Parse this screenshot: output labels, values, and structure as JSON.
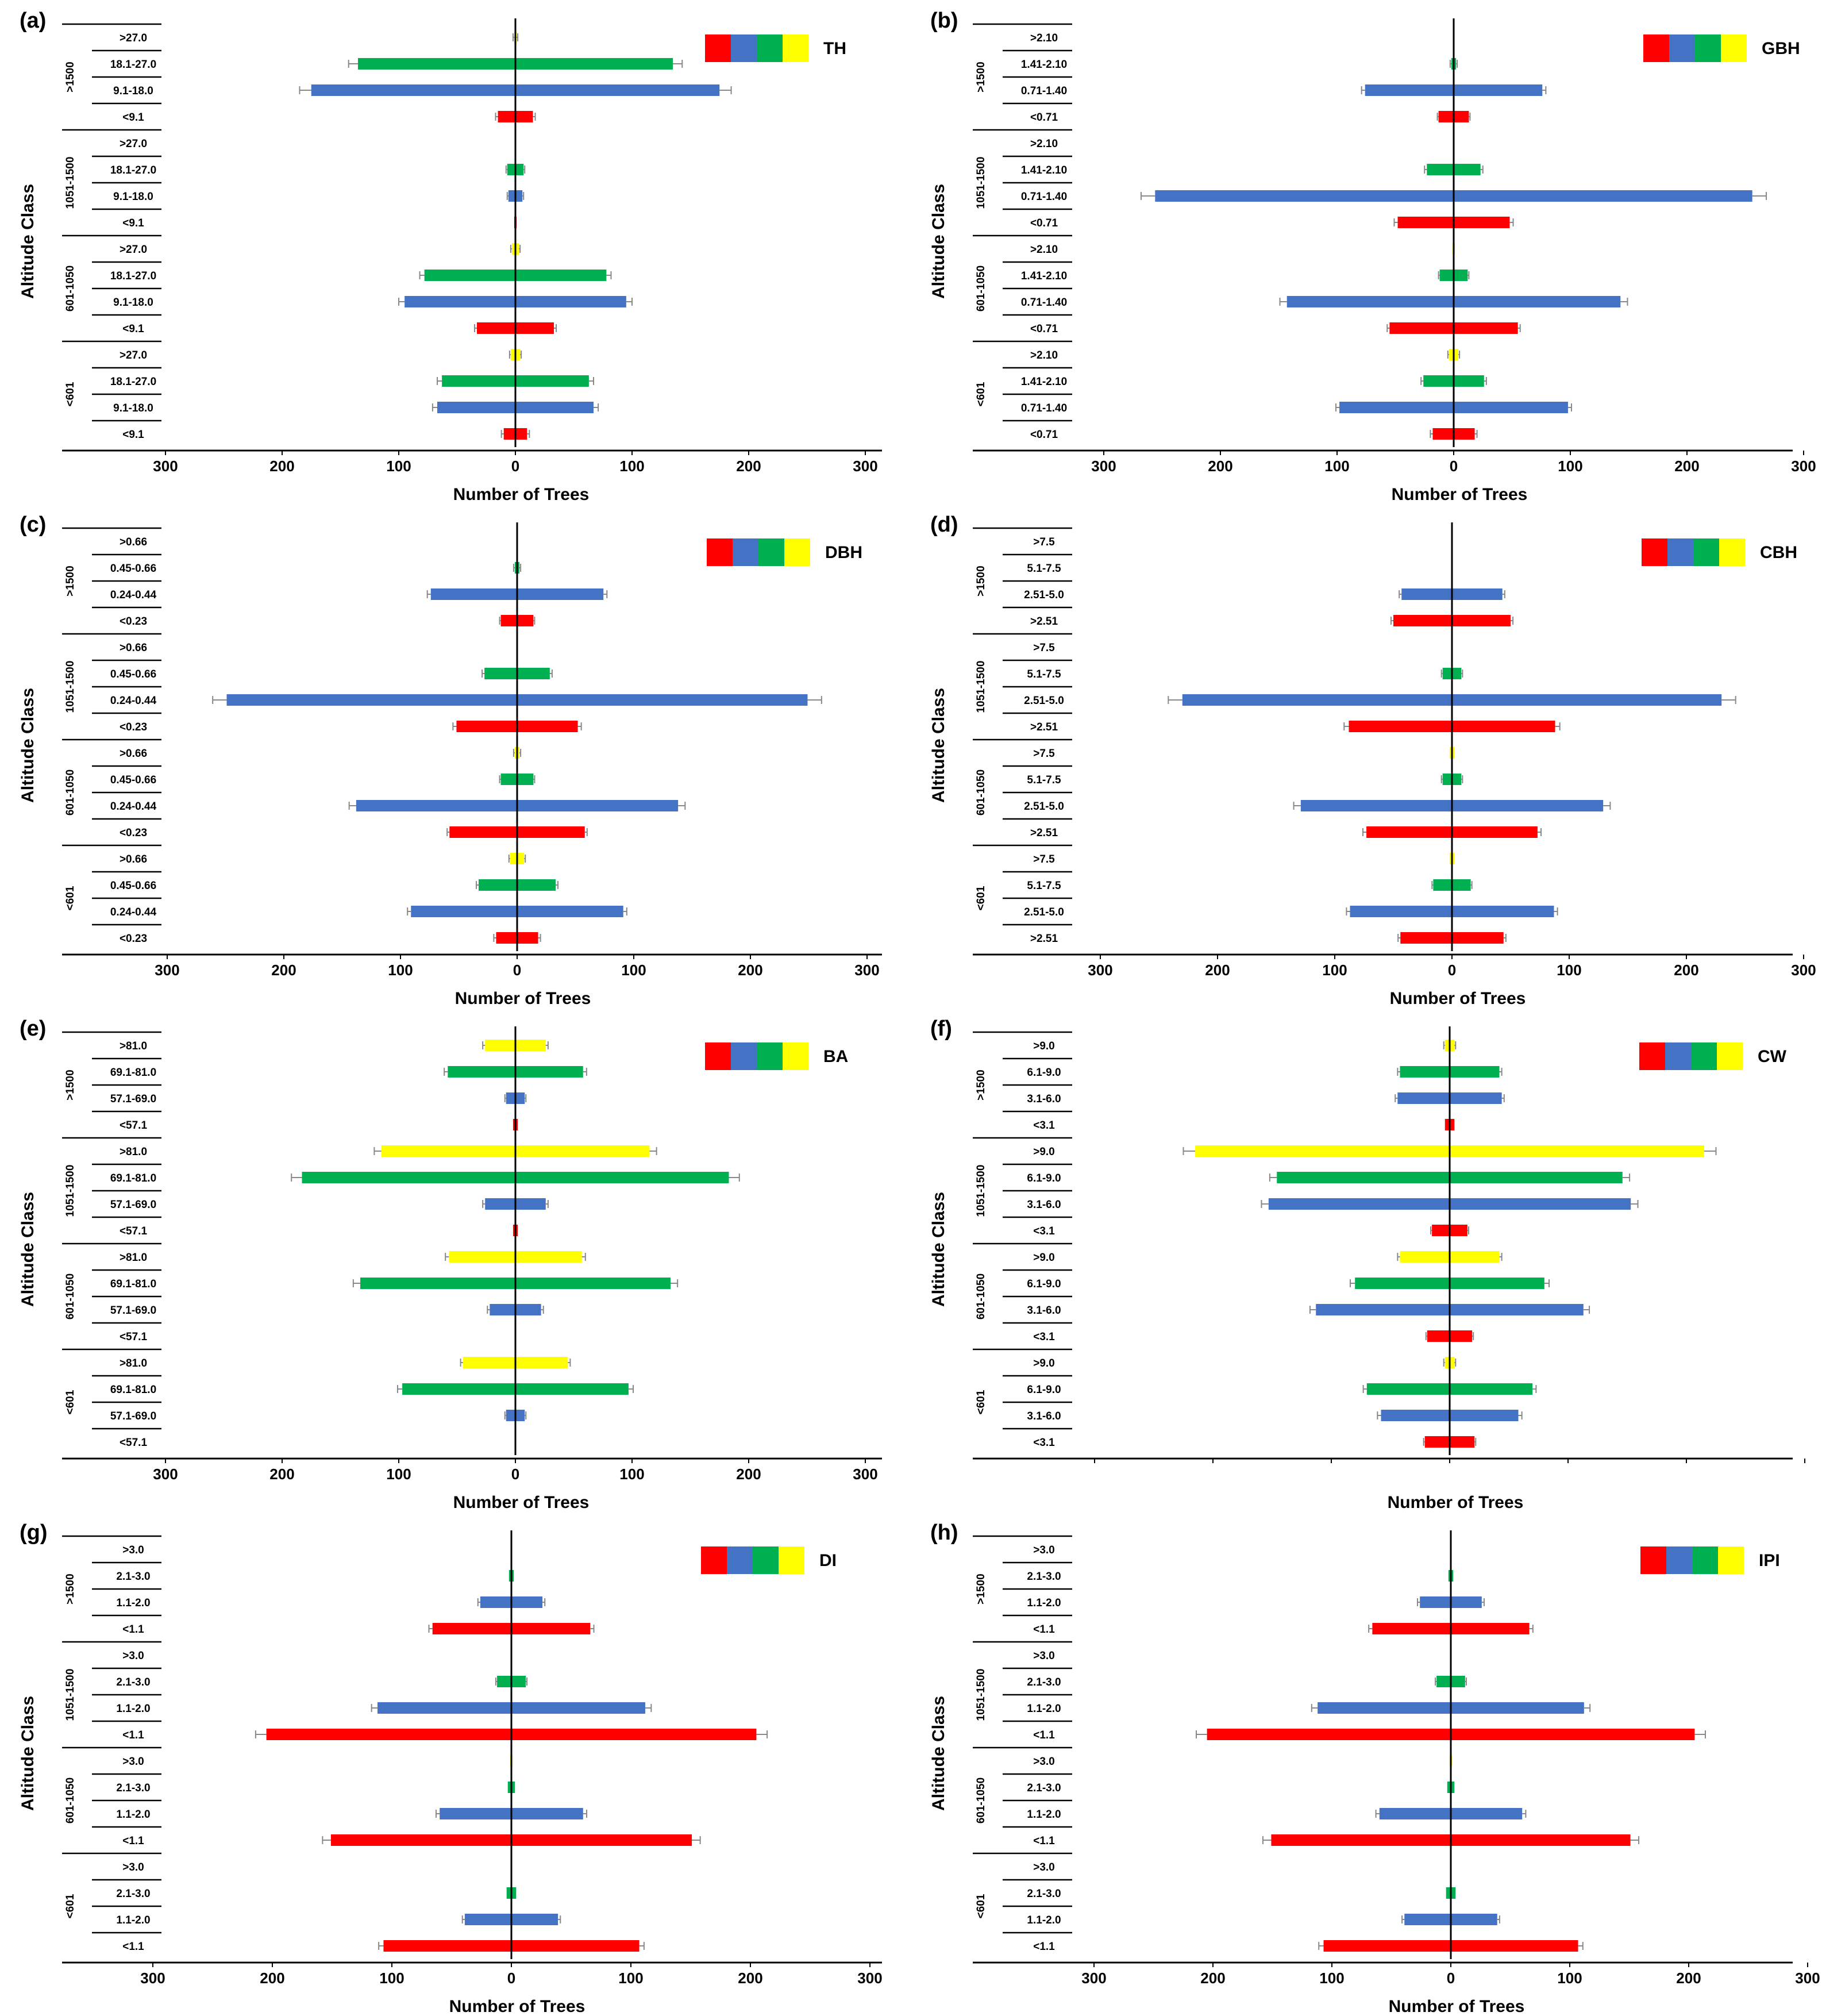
{
  "figure": {
    "y_axis_label": "Altitude Class",
    "x_axis_label": "Number of Trees",
    "altitude_classes": [
      ">1500",
      "1051-1500",
      "601-1050",
      "<601"
    ],
    "legend_colors": [
      "#ff0000",
      "#4472c4",
      "#00b050",
      "#ffff00"
    ]
  },
  "chart_data": [
    {
      "id": "a",
      "panel_label": "(a)",
      "title": "TH",
      "type": "bar",
      "xlabel": "Number of Trees",
      "ylabel": "Altitude Class",
      "xlim": [
        -300,
        300
      ],
      "x_ticks": [
        "300",
        "200",
        "100",
        "0",
        "100",
        "200",
        "300"
      ],
      "groups": [
        {
          "altitude": ">1500",
          "size_labels": [
            ">27.0",
            "18.1-27.0",
            "9.1-18.0",
            "<9.1"
          ],
          "values": [
            1,
            135,
            175,
            15
          ],
          "errors": [
            1,
            8,
            10,
            2
          ]
        },
        {
          "altitude": "1051-1500",
          "size_labels": [
            ">27.0",
            "18.1-27.0",
            "9.1-18.0",
            "<9.1"
          ],
          "values": [
            0,
            7,
            6,
            1
          ],
          "errors": [
            0,
            1,
            1,
            0
          ]
        },
        {
          "altitude": "601-1050",
          "size_labels": [
            ">27.0",
            "18.1-27.0",
            "9.1-18.0",
            "<9.1"
          ],
          "values": [
            3,
            78,
            95,
            33
          ],
          "errors": [
            1,
            4,
            5,
            2
          ]
        },
        {
          "altitude": "<601",
          "size_labels": [
            ">27.0",
            "18.1-27.0",
            "9.1-18.0",
            "<9.1"
          ],
          "values": [
            4,
            63,
            67,
            10
          ],
          "errors": [
            1,
            4,
            4,
            2
          ]
        }
      ]
    },
    {
      "id": "b",
      "panel_label": "(b)",
      "title": "GBH",
      "type": "bar",
      "xlabel": "Number of Trees",
      "ylabel": "Altitude Class",
      "xlim": [
        -300,
        300
      ],
      "x_ticks": [
        "300",
        "200",
        "100",
        "0",
        "100",
        "200",
        "300"
      ],
      "groups": [
        {
          "altitude": ">1500",
          "size_labels": [
            ">2.10",
            "1.41-2.10",
            "0.71-1.40",
            "<0.71"
          ],
          "values": [
            0,
            2,
            76,
            13
          ],
          "errors": [
            0,
            1,
            3,
            1
          ]
        },
        {
          "altitude": "1051-1500",
          "size_labels": [
            ">2.10",
            "1.41-2.10",
            "0.71-1.40",
            "<0.71"
          ],
          "values": [
            0,
            23,
            256,
            48
          ],
          "errors": [
            0,
            2,
            12,
            3
          ]
        },
        {
          "altitude": "601-1050",
          "size_labels": [
            ">2.10",
            "1.41-2.10",
            "0.71-1.40",
            "<0.71"
          ],
          "values": [
            1,
            12,
            143,
            55
          ],
          "errors": [
            0,
            1,
            6,
            2
          ]
        },
        {
          "altitude": "<601",
          "size_labels": [
            ">2.10",
            "1.41-2.10",
            "0.71-1.40",
            "<0.71"
          ],
          "values": [
            4,
            26,
            98,
            18
          ],
          "errors": [
            1,
            2,
            3,
            2
          ]
        }
      ]
    },
    {
      "id": "c",
      "panel_label": "(c)",
      "title": "DBH",
      "type": "bar",
      "xlabel": "Number of Trees",
      "ylabel": "Altitude Class",
      "xlim": [
        -300,
        300
      ],
      "x_ticks": [
        "300",
        "200",
        "100",
        "0",
        "100",
        "200",
        "300"
      ],
      "groups": [
        {
          "altitude": ">1500",
          "size_labels": [
            ">0.66",
            "0.45-0.66",
            "0.24-0.44",
            "<0.23"
          ],
          "values": [
            0,
            2,
            74,
            14
          ],
          "errors": [
            0,
            1,
            3,
            1
          ]
        },
        {
          "altitude": "1051-1500",
          "size_labels": [
            ">0.66",
            "0.45-0.66",
            "0.24-0.44",
            "<0.23"
          ],
          "values": [
            0,
            28,
            249,
            52
          ],
          "errors": [
            0,
            2,
            12,
            3
          ]
        },
        {
          "altitude": "601-1050",
          "size_labels": [
            ">0.66",
            "0.45-0.66",
            "0.24-0.44",
            "<0.23"
          ],
          "values": [
            2,
            14,
            138,
            58
          ],
          "errors": [
            1,
            1,
            6,
            2
          ]
        },
        {
          "altitude": "<601",
          "size_labels": [
            ">0.66",
            "0.45-0.66",
            "0.24-0.44",
            "<0.23"
          ],
          "values": [
            6,
            33,
            91,
            18
          ],
          "errors": [
            1,
            2,
            3,
            2
          ]
        }
      ]
    },
    {
      "id": "d",
      "panel_label": "(d)",
      "title": "CBH",
      "type": "bar",
      "xlabel": "Number of Trees",
      "ylabel": "Altitude Class",
      "xlim": [
        -300,
        300
      ],
      "x_ticks": [
        "300",
        "200",
        "100",
        "0",
        "100",
        "200",
        "300"
      ],
      "groups": [
        {
          "altitude": ">1500",
          "size_labels": [
            ">7.5",
            "5.1-7.5",
            "2.51-5.0",
            ">2.51"
          ],
          "values": [
            0,
            0,
            43,
            50
          ],
          "errors": [
            0,
            0,
            2,
            2
          ]
        },
        {
          "altitude": "1051-1500",
          "size_labels": [
            ">7.5",
            "5.1-7.5",
            "2.51-5.0",
            ">2.51"
          ],
          "values": [
            0,
            8,
            230,
            88
          ],
          "errors": [
            0,
            1,
            12,
            4
          ]
        },
        {
          "altitude": "601-1050",
          "size_labels": [
            ">7.5",
            "5.1-7.5",
            "2.51-5.0",
            ">2.51"
          ],
          "values": [
            2,
            8,
            129,
            73
          ],
          "errors": [
            0,
            1,
            6,
            3
          ]
        },
        {
          "altitude": "<601",
          "size_labels": [
            ">7.5",
            "5.1-7.5",
            "2.51-5.0",
            ">2.51"
          ],
          "values": [
            2,
            16,
            87,
            44
          ],
          "errors": [
            0,
            1,
            3,
            2
          ]
        }
      ]
    },
    {
      "id": "e",
      "panel_label": "(e)",
      "title": "BA",
      "type": "bar",
      "xlabel": "Number of Trees",
      "ylabel": "Altitude Class",
      "xlim": [
        -300,
        300
      ],
      "x_ticks": [
        "300",
        "200",
        "100",
        "0",
        "100",
        "200",
        "300"
      ],
      "groups": [
        {
          "altitude": ">1500",
          "size_labels": [
            ">81.0",
            "69.1-81.0",
            "57.1-69.0",
            "<57.1"
          ],
          "values": [
            26,
            58,
            8,
            2
          ],
          "errors": [
            2,
            3,
            1,
            0
          ]
        },
        {
          "altitude": "1051-1500",
          "size_labels": [
            ">81.0",
            "69.1-81.0",
            "57.1-69.0",
            "<57.1"
          ],
          "values": [
            115,
            183,
            26,
            2
          ],
          "errors": [
            6,
            9,
            2,
            0
          ]
        },
        {
          "altitude": "601-1050",
          "size_labels": [
            ">81.0",
            "69.1-81.0",
            "57.1-69.0",
            "<57.1"
          ],
          "values": [
            57,
            133,
            22,
            0
          ],
          "errors": [
            3,
            6,
            2,
            0
          ]
        },
        {
          "altitude": "<601",
          "size_labels": [
            ">81.0",
            "69.1-81.0",
            "57.1-69.0",
            "<57.1"
          ],
          "values": [
            45,
            97,
            8,
            0
          ],
          "errors": [
            2,
            4,
            1,
            0
          ]
        }
      ]
    },
    {
      "id": "f",
      "panel_label": "(f)",
      "title": "CW",
      "type": "bar",
      "xlabel": "Number of Trees",
      "ylabel": "Altitude Class",
      "xlim": [
        -300,
        300
      ],
      "x_ticks": [],
      "groups": [
        {
          "altitude": ">1500",
          "size_labels": [
            ">9.0",
            "6.1-9.0",
            "3.1-6.0",
            "<3.1"
          ],
          "values": [
            4,
            42,
            44,
            4
          ],
          "errors": [
            1,
            2,
            2,
            0
          ]
        },
        {
          "altitude": "1051-1500",
          "size_labels": [
            ">9.0",
            "6.1-9.0",
            "3.1-6.0",
            "<3.1"
          ],
          "values": [
            215,
            146,
            153,
            15
          ],
          "errors": [
            10,
            6,
            6,
            1
          ]
        },
        {
          "altitude": "601-1050",
          "size_labels": [
            ">9.0",
            "6.1-9.0",
            "3.1-6.0",
            "<3.1"
          ],
          "values": [
            42,
            80,
            113,
            19
          ],
          "errors": [
            2,
            4,
            5,
            1
          ]
        },
        {
          "altitude": "<601",
          "size_labels": [
            ">9.0",
            "6.1-9.0",
            "3.1-6.0",
            "<3.1"
          ],
          "values": [
            4,
            70,
            58,
            21
          ],
          "errors": [
            1,
            3,
            3,
            1
          ]
        }
      ]
    },
    {
      "id": "g",
      "panel_label": "(g)",
      "title": "DI",
      "type": "bar",
      "xlabel": "Number of Trees",
      "ylabel": "Altitude Class",
      "xlim": [
        -300,
        300
      ],
      "x_ticks": [
        "300",
        "200",
        "100",
        "0",
        "100",
        "200",
        "300"
      ],
      "groups": [
        {
          "altitude": ">1500",
          "size_labels": [
            ">3.0",
            "2.1-3.0",
            "1.1-2.0",
            "<1.1"
          ],
          "values": [
            0,
            2,
            26,
            66
          ],
          "errors": [
            0,
            0,
            2,
            3
          ]
        },
        {
          "altitude": "1051-1500",
          "size_labels": [
            ">3.0",
            "2.1-3.0",
            "1.1-2.0",
            "<1.1"
          ],
          "values": [
            0,
            12,
            112,
            205
          ],
          "errors": [
            0,
            1,
            5,
            9
          ]
        },
        {
          "altitude": "601-1050",
          "size_labels": [
            ">3.0",
            "2.1-3.0",
            "1.1-2.0",
            "<1.1"
          ],
          "values": [
            1,
            3,
            60,
            151
          ],
          "errors": [
            0,
            0,
            3,
            7
          ]
        },
        {
          "altitude": "<601",
          "size_labels": [
            ">3.0",
            "2.1-3.0",
            "1.1-2.0",
            "<1.1"
          ],
          "values": [
            0,
            4,
            39,
            107
          ],
          "errors": [
            0,
            0,
            2,
            4
          ]
        }
      ]
    },
    {
      "id": "h",
      "panel_label": "(h)",
      "title": "IPI",
      "type": "bar",
      "xlabel": "Number of Trees",
      "ylabel": "Altitude Class",
      "xlim": [
        -300,
        300
      ],
      "x_ticks": [
        "300",
        "200",
        "100",
        "0",
        "100",
        "200",
        "300"
      ],
      "groups": [
        {
          "altitude": ">1500",
          "size_labels": [
            ">3.0",
            "2.1-3.0",
            "1.1-2.0",
            "<1.1"
          ],
          "values": [
            0,
            2,
            26,
            66
          ],
          "errors": [
            0,
            0,
            2,
            3
          ]
        },
        {
          "altitude": "1051-1500",
          "size_labels": [
            ">3.0",
            "2.1-3.0",
            "1.1-2.0",
            "<1.1"
          ],
          "values": [
            0,
            12,
            112,
            205
          ],
          "errors": [
            0,
            1,
            5,
            9
          ]
        },
        {
          "altitude": "601-1050",
          "size_labels": [
            ">3.0",
            "2.1-3.0",
            "1.1-2.0",
            "<1.1"
          ],
          "values": [
            1,
            3,
            60,
            151
          ],
          "errors": [
            0,
            0,
            3,
            7
          ]
        },
        {
          "altitude": "<601",
          "size_labels": [
            ">3.0",
            "2.1-3.0",
            "1.1-2.0",
            "<1.1"
          ],
          "values": [
            0,
            4,
            39,
            107
          ],
          "errors": [
            0,
            0,
            2,
            4
          ]
        }
      ]
    }
  ]
}
